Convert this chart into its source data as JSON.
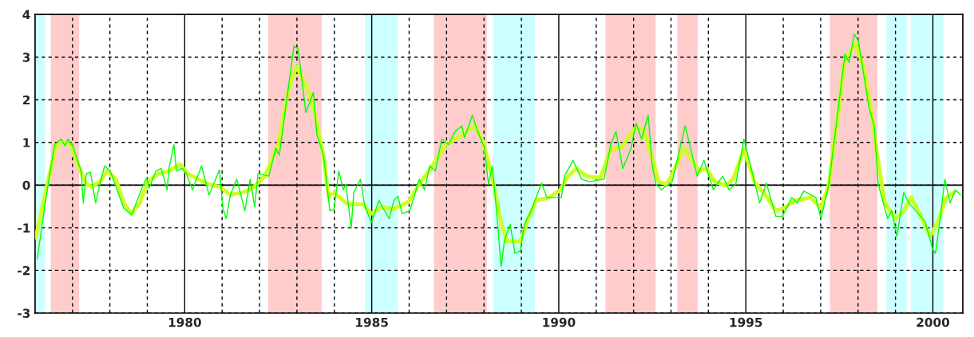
{
  "chart_data": {
    "type": "line",
    "xlim": [
      1976,
      2000.8
    ],
    "ylim": [
      -3,
      4
    ],
    "xticks": [
      {
        "value": 1977,
        "label": null
      },
      {
        "value": 1978,
        "label": null
      },
      {
        "value": 1979,
        "label": null
      },
      1980,
      {
        "value": 1981,
        "label": null
      },
      {
        "value": 1982,
        "label": null
      },
      {
        "value": 1983,
        "label": null
      },
      {
        "value": 1984,
        "label": null
      },
      1985,
      {
        "value": 1986,
        "label": null
      },
      {
        "value": 1987,
        "label": null
      },
      {
        "value": 1988,
        "label": null
      },
      {
        "value": 1989,
        "label": null
      },
      1990,
      {
        "value": 1991,
        "label": null
      },
      {
        "value": 1992,
        "label": null
      },
      {
        "value": 1993,
        "label": null
      },
      {
        "value": 1994,
        "label": null
      },
      1995,
      {
        "value": 1996,
        "label": null
      },
      {
        "value": 1997,
        "label": null
      },
      {
        "value": 1998,
        "label": null
      },
      {
        "value": 1999,
        "label": null
      },
      2000
    ],
    "yticks": [
      -3,
      -2,
      -1,
      0,
      1,
      2,
      3,
      4
    ],
    "grid": true,
    "legend": false,
    "marker": "none",
    "line_style": "solid",
    "bands": [
      {
        "axis": "x",
        "from": 1976.0,
        "to": 1976.26,
        "color": "#ccffff"
      },
      {
        "axis": "x",
        "from": 1976.42,
        "to": 1977.18,
        "color": "#ffcccc"
      },
      {
        "axis": "x",
        "from": 1982.23,
        "to": 1983.66,
        "color": "#ffcccc"
      },
      {
        "axis": "x",
        "from": 1984.82,
        "to": 1985.7,
        "color": "#ccffff"
      },
      {
        "axis": "x",
        "from": 1986.66,
        "to": 1988.08,
        "color": "#ffcccc"
      },
      {
        "axis": "x",
        "from": 1988.24,
        "to": 1989.36,
        "color": "#ccffff"
      },
      {
        "axis": "x",
        "from": 1991.25,
        "to": 1992.59,
        "color": "#ffcccc"
      },
      {
        "axis": "x",
        "from": 1993.17,
        "to": 1993.71,
        "color": "#ffcccc"
      },
      {
        "axis": "x",
        "from": 1997.25,
        "to": 1998.52,
        "color": "#ffcccc"
      },
      {
        "axis": "x",
        "from": 1998.76,
        "to": 1999.3,
        "color": "#ccffff"
      },
      {
        "axis": "x",
        "from": 1999.41,
        "to": 2000.28,
        "color": "#ccffff"
      }
    ],
    "series": [
      {
        "color": "#ccff22",
        "x": [
          1976.02,
          1976.31,
          1976.56,
          1976.73,
          1976.95,
          1977.16,
          1977.37,
          1977.52,
          1977.73,
          1977.94,
          1978.16,
          1978.37,
          1978.58,
          1978.8,
          1979.01,
          1979.3,
          1979.58,
          1979.87,
          1980.08,
          1980.29,
          1980.65,
          1980.93,
          1981.22,
          1981.57,
          1981.86,
          1982.14,
          1982.5,
          1982.78,
          1982.99,
          1983.28,
          1983.49,
          1983.71,
          1983.85,
          1983.99,
          1984.35,
          1984.77,
          1984.99,
          1985.27,
          1985.56,
          1985.98,
          1986.27,
          1986.62,
          1986.98,
          1987.34,
          1987.76,
          1987.98,
          1988.26,
          1988.47,
          1988.62,
          1988.97,
          1989.18,
          1989.4,
          1989.75,
          1990.04,
          1990.25,
          1990.47,
          1990.75,
          1991.11,
          1991.39,
          1991.68,
          1992.03,
          1992.25,
          1992.46,
          1992.67,
          1992.89,
          1993.1,
          1993.35,
          1993.53,
          1993.74,
          1993.95,
          1994.17,
          1994.45,
          1994.66,
          1994.95,
          1995.23,
          1995.52,
          1995.8,
          1996.02,
          1996.3,
          1996.73,
          1997.01,
          1997.22,
          1997.44,
          1997.65,
          1997.94,
          1998.15,
          1998.36,
          1998.51,
          1998.72,
          1999.0,
          1999.22,
          1999.43,
          1999.64,
          1999.93,
          2000.14,
          2000.36,
          2000.57
        ],
        "values": [
          -1.23,
          -0.04,
          0.92,
          1.01,
          0.95,
          0.45,
          0.02,
          -0.04,
          0.08,
          0.33,
          0.14,
          -0.42,
          -0.67,
          -0.42,
          0.08,
          0.27,
          0.33,
          0.49,
          0.27,
          0.17,
          0.02,
          -0.04,
          -0.23,
          -0.17,
          -0.04,
          0.21,
          0.95,
          2.26,
          2.79,
          2.26,
          1.64,
          0.7,
          -0.29,
          -0.17,
          -0.45,
          -0.45,
          -0.67,
          -0.51,
          -0.57,
          -0.39,
          0.02,
          0.45,
          0.95,
          1.14,
          1.39,
          1.01,
          0.02,
          -0.92,
          -1.32,
          -1.32,
          -0.79,
          -0.36,
          -0.29,
          -0.11,
          0.21,
          0.39,
          0.21,
          0.17,
          0.83,
          0.89,
          1.33,
          1.33,
          0.75,
          0.08,
          0.02,
          0.39,
          0.86,
          0.64,
          0.33,
          0.39,
          0.08,
          -0.01,
          0.14,
          0.83,
          0.08,
          -0.23,
          -0.6,
          -0.54,
          -0.36,
          -0.29,
          -0.54,
          0.02,
          1.51,
          2.95,
          3.32,
          2.76,
          1.7,
          0.7,
          -0.42,
          -0.79,
          -0.6,
          -0.29,
          -0.67,
          -1.2,
          -0.85,
          -0.29,
          -0.17
        ]
      },
      {
        "color": "#00ff00",
        "x": [
          1976.06,
          1976.27,
          1976.52,
          1976.7,
          1976.8,
          1976.88,
          1977.02,
          1977.23,
          1977.29,
          1977.37,
          1977.48,
          1977.62,
          1977.73,
          1977.86,
          1978.01,
          1978.37,
          1978.58,
          1978.87,
          1978.98,
          1979.05,
          1979.23,
          1979.37,
          1979.53,
          1979.58,
          1979.71,
          1979.78,
          1979.94,
          1980.04,
          1980.21,
          1980.45,
          1980.65,
          1980.93,
          1981.02,
          1981.11,
          1981.22,
          1981.39,
          1981.61,
          1981.75,
          1981.87,
          1981.96,
          1982.25,
          1982.43,
          1982.53,
          1982.71,
          1982.92,
          1983.03,
          1983.24,
          1983.44,
          1983.53,
          1983.71,
          1983.88,
          1983.99,
          1984.12,
          1984.24,
          1984.31,
          1984.45,
          1984.52,
          1984.7,
          1984.81,
          1984.99,
          1985.19,
          1985.34,
          1985.47,
          1985.59,
          1985.7,
          1985.81,
          1986.02,
          1986.27,
          1986.41,
          1986.55,
          1986.7,
          1986.87,
          1987.05,
          1987.23,
          1987.41,
          1987.48,
          1987.69,
          1987.83,
          1988.01,
          1988.12,
          1988.22,
          1988.33,
          1988.46,
          1988.55,
          1988.7,
          1988.83,
          1988.97,
          1989.08,
          1989.26,
          1989.54,
          1989.68,
          1990.07,
          1990.15,
          1990.38,
          1990.61,
          1990.82,
          1991.21,
          1991.39,
          1991.53,
          1991.71,
          1991.92,
          1992.07,
          1992.21,
          1992.39,
          1992.5,
          1992.6,
          1992.74,
          1993.03,
          1993.38,
          1993.7,
          1993.88,
          1994.13,
          1994.38,
          1994.55,
          1994.73,
          1994.95,
          1995.37,
          1995.55,
          1995.8,
          1995.98,
          1996.23,
          1996.37,
          1996.55,
          1996.87,
          1997.01,
          1997.22,
          1997.65,
          1997.76,
          1997.9,
          1998.01,
          1998.29,
          1998.43,
          1998.54,
          1998.79,
          1998.9,
          1999.04,
          1999.22,
          1999.36,
          1999.79,
          2000.0,
          2000.07,
          2000.21,
          2000.32,
          2000.46,
          2000.6,
          2000.74
        ],
        "values": [
          -1.73,
          -0.42,
          0.95,
          1.08,
          0.92,
          1.08,
          0.89,
          0.33,
          -0.42,
          0.27,
          0.3,
          -0.42,
          0.02,
          0.45,
          0.33,
          -0.54,
          -0.7,
          -0.04,
          0.17,
          -0.07,
          0.33,
          0.39,
          -0.11,
          0.39,
          0.95,
          0.33,
          0.39,
          0.27,
          -0.11,
          0.45,
          -0.23,
          0.36,
          -0.54,
          -0.79,
          -0.23,
          0.14,
          -0.6,
          0.14,
          -0.51,
          0.27,
          0.21,
          0.86,
          0.7,
          1.89,
          3.26,
          3.2,
          1.7,
          2.17,
          1.2,
          0.7,
          -0.6,
          -0.57,
          0.33,
          -0.11,
          0.02,
          -1.01,
          -0.17,
          0.14,
          -0.48,
          -0.88,
          -0.36,
          -0.6,
          -0.79,
          -0.36,
          -0.26,
          -0.67,
          -0.6,
          0.14,
          -0.11,
          0.45,
          0.33,
          1.08,
          0.95,
          1.26,
          1.39,
          1.11,
          1.64,
          1.26,
          0.89,
          0.02,
          0.45,
          -0.54,
          -1.91,
          -1.29,
          -0.92,
          -1.6,
          -1.54,
          -0.92,
          -0.6,
          0.05,
          -0.29,
          -0.29,
          0.21,
          0.58,
          0.14,
          0.08,
          0.14,
          0.95,
          1.26,
          0.39,
          0.83,
          1.45,
          1.08,
          1.64,
          0.45,
          0.02,
          -0.11,
          0.08,
          1.39,
          0.21,
          0.58,
          -0.11,
          0.21,
          -0.11,
          0.02,
          1.08,
          -0.42,
          0.05,
          -0.73,
          -0.73,
          -0.29,
          -0.42,
          -0.14,
          -0.29,
          -0.79,
          0.02,
          3.07,
          2.88,
          3.54,
          3.38,
          1.83,
          1.39,
          0.02,
          -0.79,
          -0.6,
          -1.2,
          -0.17,
          -0.42,
          -0.85,
          -1.51,
          -1.6,
          -0.67,
          0.14,
          -0.42,
          -0.11,
          -0.23
        ]
      }
    ]
  }
}
